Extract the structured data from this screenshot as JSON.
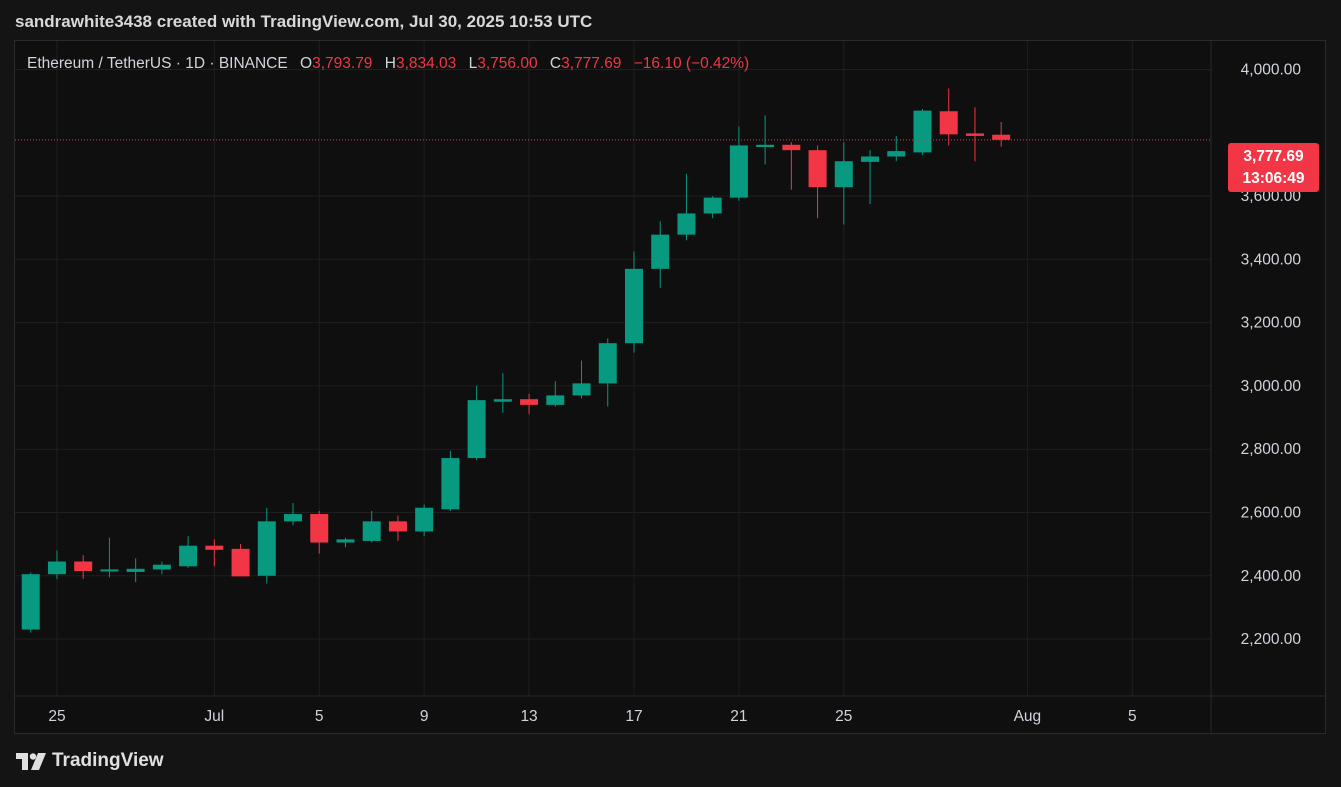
{
  "header": {
    "credit": "sandrawhite3438 created with TradingView.com, Jul 30, 2025 10:53 UTC"
  },
  "legend": {
    "symbol": "Ethereum / TetherUS · 1D · BINANCE",
    "open_label": "O",
    "open": "3,793.79",
    "high_label": "H",
    "high": "3,834.03",
    "low_label": "L",
    "low": "3,756.00",
    "close_label": "C",
    "close": "3,777.69",
    "change": "−16.10 (−0.42%)"
  },
  "price_tag": {
    "price": "3,777.69",
    "countdown": "13:06:49"
  },
  "footer": {
    "brand": "TradingView"
  },
  "colors": {
    "up": "#089981",
    "down": "#f23645",
    "grid": "#1f1f1f",
    "text": "#d1d4dc",
    "background": "#0f0f0f"
  },
  "chart_data": {
    "type": "candlestick",
    "timeframe": "1D",
    "y_ticks": [
      2200,
      2400,
      2600,
      2800,
      3000,
      3200,
      3400,
      3600,
      4000
    ],
    "y_tick_labels": [
      "2,200.00",
      "2,400.00",
      "2,600.00",
      "2,800.00",
      "3,000.00",
      "3,200.00",
      "3,400.00",
      "3,600.00",
      "4,000.00"
    ],
    "ylim": [
      2020,
      4090
    ],
    "x_ticks": [
      {
        "label": "25",
        "index": 1
      },
      {
        "label": "Jul",
        "index": 7
      },
      {
        "label": "5",
        "index": 11
      },
      {
        "label": "9",
        "index": 15
      },
      {
        "label": "13",
        "index": 19
      },
      {
        "label": "17",
        "index": 23
      },
      {
        "label": "21",
        "index": 27
      },
      {
        "label": "25",
        "index": 31
      },
      {
        "label": "Aug",
        "index": 38
      },
      {
        "label": "5",
        "index": 42
      }
    ],
    "x_range": [
      -0.6,
      45
    ],
    "last_price": 3777.69,
    "candles": [
      {
        "o": 2230,
        "h": 2410,
        "l": 2220,
        "c": 2405
      },
      {
        "o": 2405,
        "h": 2480,
        "l": 2390,
        "c": 2445
      },
      {
        "o": 2445,
        "h": 2465,
        "l": 2390,
        "c": 2415
      },
      {
        "o": 2415,
        "h": 2520,
        "l": 2395,
        "c": 2420
      },
      {
        "o": 2412,
        "h": 2455,
        "l": 2380,
        "c": 2422
      },
      {
        "o": 2420,
        "h": 2445,
        "l": 2405,
        "c": 2435
      },
      {
        "o": 2430,
        "h": 2525,
        "l": 2425,
        "c": 2495
      },
      {
        "o": 2495,
        "h": 2515,
        "l": 2430,
        "c": 2482
      },
      {
        "o": 2485,
        "h": 2500,
        "l": 2400,
        "c": 2398
      },
      {
        "o": 2400,
        "h": 2615,
        "l": 2375,
        "c": 2572
      },
      {
        "o": 2572,
        "h": 2630,
        "l": 2560,
        "c": 2595
      },
      {
        "o": 2595,
        "h": 2605,
        "l": 2470,
        "c": 2505
      },
      {
        "o": 2505,
        "h": 2520,
        "l": 2490,
        "c": 2515
      },
      {
        "o": 2510,
        "h": 2605,
        "l": 2505,
        "c": 2572
      },
      {
        "o": 2572,
        "h": 2590,
        "l": 2510,
        "c": 2540
      },
      {
        "o": 2540,
        "h": 2625,
        "l": 2525,
        "c": 2615
      },
      {
        "o": 2610,
        "h": 2795,
        "l": 2605,
        "c": 2772
      },
      {
        "o": 2772,
        "h": 3000,
        "l": 2765,
        "c": 2955
      },
      {
        "o": 2950,
        "h": 3040,
        "l": 2915,
        "c": 2958
      },
      {
        "o": 2958,
        "h": 2975,
        "l": 2910,
        "c": 2940
      },
      {
        "o": 2940,
        "h": 3015,
        "l": 2935,
        "c": 2970
      },
      {
        "o": 2970,
        "h": 3080,
        "l": 2960,
        "c": 3008
      },
      {
        "o": 3008,
        "h": 3150,
        "l": 2935,
        "c": 3135
      },
      {
        "o": 3135,
        "h": 3425,
        "l": 3105,
        "c": 3370
      },
      {
        "o": 3370,
        "h": 3520,
        "l": 3310,
        "c": 3478
      },
      {
        "o": 3478,
        "h": 3670,
        "l": 3460,
        "c": 3545
      },
      {
        "o": 3545,
        "h": 3600,
        "l": 3530,
        "c": 3595
      },
      {
        "o": 3595,
        "h": 3820,
        "l": 3585,
        "c": 3760
      },
      {
        "o": 3755,
        "h": 3855,
        "l": 3700,
        "c": 3762
      },
      {
        "o": 3762,
        "h": 3770,
        "l": 3620,
        "c": 3745
      },
      {
        "o": 3745,
        "h": 3760,
        "l": 3530,
        "c": 3628
      },
      {
        "o": 3628,
        "h": 3770,
        "l": 3510,
        "c": 3710
      },
      {
        "o": 3708,
        "h": 3745,
        "l": 3575,
        "c": 3725
      },
      {
        "o": 3725,
        "h": 3790,
        "l": 3710,
        "c": 3742
      },
      {
        "o": 3738,
        "h": 3875,
        "l": 3730,
        "c": 3870
      },
      {
        "o": 3868,
        "h": 3940,
        "l": 3760,
        "c": 3795
      },
      {
        "o": 3798,
        "h": 3880,
        "l": 3710,
        "c": 3790
      },
      {
        "o": 3793.79,
        "h": 3834.03,
        "l": 3756.0,
        "c": 3777.69
      }
    ]
  }
}
